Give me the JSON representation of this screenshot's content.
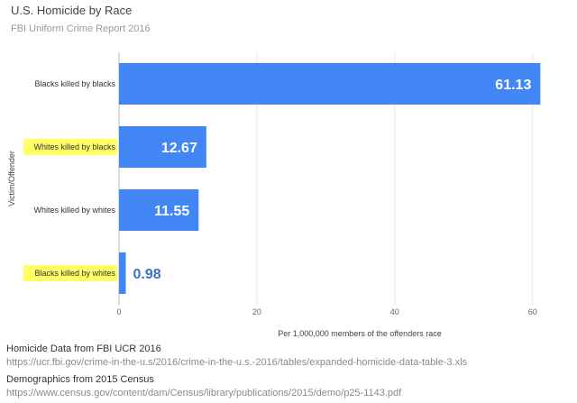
{
  "title": "U.S. Homicide by Race",
  "subtitle": "FBI Uniform Crime Report 2016",
  "footer": {
    "source1_label": "Homicide Data from FBI UCR 2016",
    "source1_url": "https://ucr.fbi.gov/crime-in-the-u.s/2016/crime-in-the-u.s.-2016/tables/expanded-homicide-data-table-3.xls",
    "source2_label": "Demographics from 2015 Census",
    "source2_url": "https://www.census.gov/content/dam/Census/library/publications/2015/demo/p25-1143.pdf"
  },
  "chart_data": {
    "type": "bar",
    "orientation": "horizontal",
    "categories": [
      "Blacks killed by blacks",
      "Whites killed by blacks",
      "Whites killed by whites",
      "Blacks killed by whites"
    ],
    "values": [
      61.13,
      12.67,
      11.55,
      0.98
    ],
    "value_labels": [
      "61.13",
      "12.67",
      "11.55",
      "0.98"
    ],
    "highlighted": [
      false,
      true,
      false,
      true
    ],
    "xlabel": "Per 1,000,000 members of the offenders race",
    "ylabel": "Victim/Offender",
    "xlim": [
      0,
      62
    ],
    "xticks": [
      0,
      20,
      40,
      60
    ],
    "grid": true,
    "colors": {
      "bar": "#4285f4",
      "highlight": "#ffff66",
      "grid": "#e6e6e6",
      "label_inside": "#ffffff",
      "label_outside": "#3d72c9"
    }
  }
}
